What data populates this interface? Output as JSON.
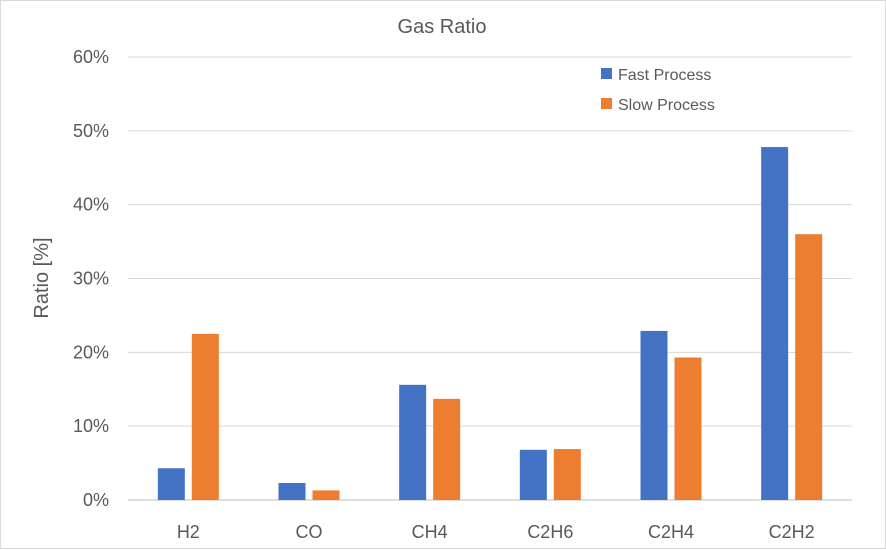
{
  "chart_data": {
    "type": "bar",
    "title": "Gas Ratio",
    "xlabel": "",
    "ylabel": "Ratio [%]",
    "ylim": [
      0,
      60
    ],
    "yticks": [
      "0%",
      "10%",
      "20%",
      "30%",
      "40%",
      "50%",
      "60%"
    ],
    "grid": true,
    "legend_position": "top-right",
    "categories": [
      "H2",
      "CO",
      "CH4",
      "C2H6",
      "C2H4",
      "C2H2"
    ],
    "series": [
      {
        "name": "Fast Process",
        "color": "#4472c4",
        "values": [
          4.3,
          2.3,
          15.6,
          6.8,
          22.9,
          47.8
        ]
      },
      {
        "name": "Slow Process",
        "color": "#ed7d31",
        "values": [
          22.5,
          1.3,
          13.7,
          6.9,
          19.3,
          36.0
        ]
      }
    ]
  }
}
